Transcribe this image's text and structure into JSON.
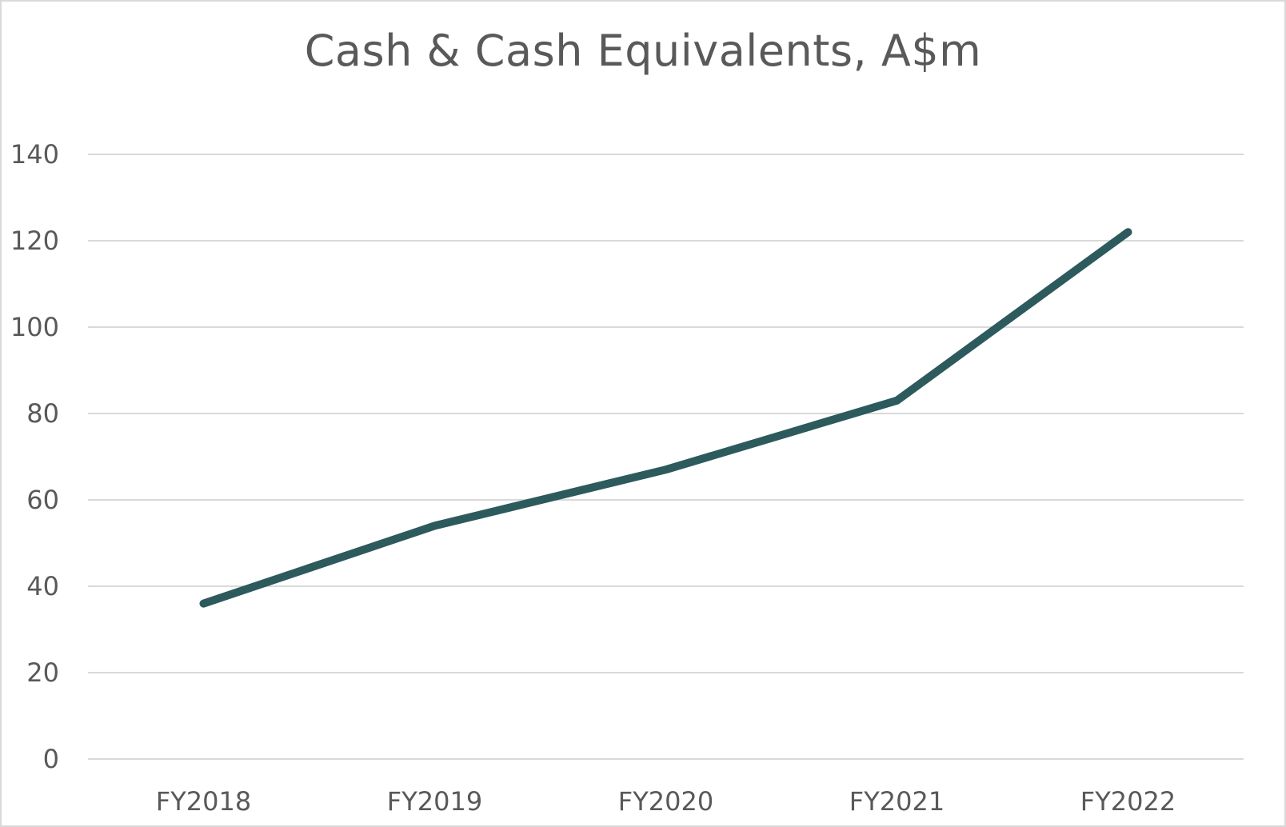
{
  "chart_data": {
    "type": "line",
    "title": "Cash & Cash Equivalents, A$m",
    "xlabel": "",
    "ylabel": "",
    "categories": [
      "FY2018",
      "FY2019",
      "FY2020",
      "FY2021",
      "FY2022"
    ],
    "series": [
      {
        "values": [
          36,
          54,
          67,
          83,
          122
        ],
        "color": "#2d5a5c"
      }
    ],
    "ylim": [
      0,
      140
    ],
    "yticks": [
      0,
      20,
      40,
      60,
      80,
      100,
      120,
      140
    ],
    "grid": true,
    "legend": "none"
  }
}
